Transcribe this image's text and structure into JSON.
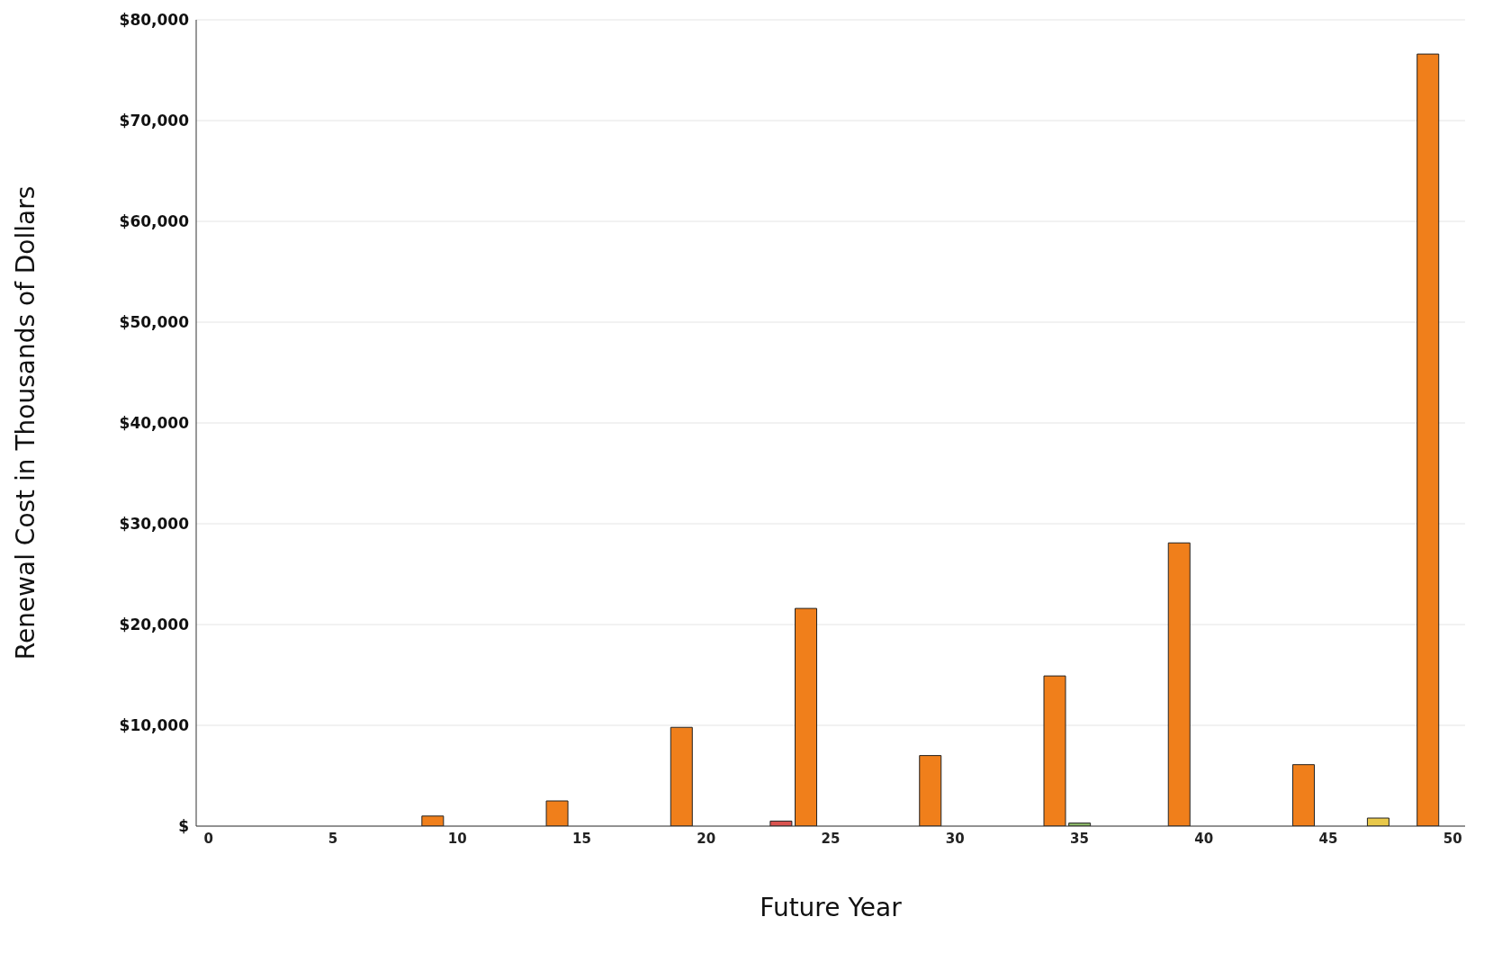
{
  "chart_data": {
    "type": "bar",
    "xlabel": "Future Year",
    "ylabel": "Renewal Cost in Thousands of Dollars",
    "x": [
      0,
      1,
      2,
      3,
      4,
      5,
      6,
      7,
      8,
      9,
      10,
      11,
      12,
      13,
      14,
      15,
      16,
      17,
      18,
      19,
      20,
      21,
      22,
      23,
      24,
      25,
      26,
      27,
      28,
      29,
      30,
      31,
      32,
      33,
      34,
      35,
      36,
      37,
      38,
      39,
      40,
      41,
      42,
      43,
      44,
      45,
      46,
      47,
      48,
      49,
      50
    ],
    "values": [
      0,
      0,
      0,
      0,
      0,
      0,
      0,
      0,
      0,
      1000,
      0,
      null,
      0,
      0,
      2500,
      0,
      0,
      0,
      0,
      9800,
      0,
      0,
      0,
      500,
      21600,
      0,
      0,
      0,
      0,
      7000,
      0,
      0,
      0,
      0,
      14900,
      300,
      0,
      0,
      0,
      28100,
      0,
      0,
      0,
      0,
      6100,
      0,
      0,
      800,
      0,
      76600,
      0
    ],
    "colors": [
      "#8fbc6a",
      "#5b9bd5",
      "#e8c84a",
      "#d9534f",
      "#f07f1b",
      "#8fbc6a",
      "#5b9bd5",
      "#e8c84a",
      "#d9534f",
      "#f07f1b",
      "#8fbc6a",
      "#5b9bd5",
      "#e8c84a",
      "#d9534f",
      "#f07f1b",
      "#8fbc6a",
      "#5b9bd5",
      "#e8c84a",
      "#d9534f",
      "#f07f1b",
      "#8fbc6a",
      "#5b9bd5",
      "#e8c84a",
      "#d9534f",
      "#f07f1b",
      "#8fbc6a",
      "#5b9bd5",
      "#e8c84a",
      "#d9534f",
      "#f07f1b",
      "#8fbc6a",
      "#5b9bd5",
      "#e8c84a",
      "#d9534f",
      "#f07f1b",
      "#8fbc6a",
      "#5b9bd5",
      "#e8c84a",
      "#d9534f",
      "#f07f1b",
      "#8fbc6a",
      "#5b9bd5",
      "#e8c84a",
      "#d9534f",
      "#f07f1b",
      "#8fbc6a",
      "#5b9bd5",
      "#e8c84a",
      "#d9534f",
      "#f07f1b",
      "#8fbc6a"
    ],
    "xlim": [
      -0.5,
      50.5
    ],
    "xticks": [
      0,
      5,
      10,
      15,
      20,
      25,
      30,
      35,
      40,
      45,
      50
    ],
    "ylim": [
      0,
      80000
    ],
    "yticks": [
      {
        "value": 0,
        "label": "$"
      },
      {
        "value": 10000,
        "label": "$10,000"
      },
      {
        "value": 20000,
        "label": "$20,000"
      },
      {
        "value": 30000,
        "label": "$30,000"
      },
      {
        "value": 40000,
        "label": "$40,000"
      },
      {
        "value": 50000,
        "label": "$50,000"
      },
      {
        "value": 60000,
        "label": "$60,000"
      },
      {
        "value": 70000,
        "label": "$70,000"
      },
      {
        "value": 80000,
        "label": "$80,000"
      }
    ],
    "grid": "y",
    "legend": false
  }
}
